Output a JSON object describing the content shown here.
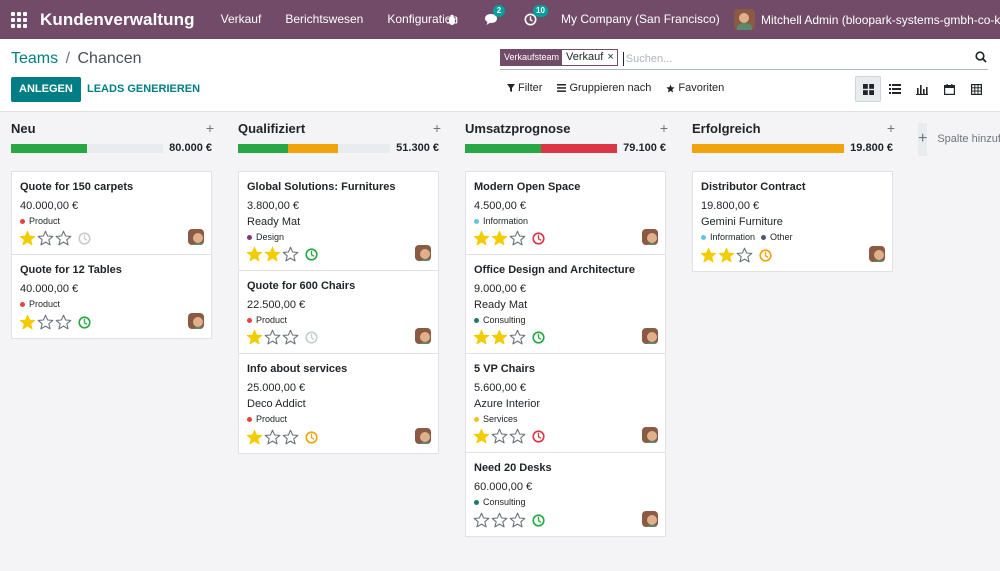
{
  "navbar": {
    "brand": "Kundenverwaltung",
    "menu": [
      "Verkauf",
      "Berichtswesen",
      "Konfiguration"
    ],
    "messages_badge": "2",
    "activities_badge": "10",
    "company": "My Company (San Francisco)",
    "user": "Mitchell Admin (bloopark-systems-gmbh-co-kg)"
  },
  "breadcrumb": {
    "parent": "Teams",
    "separator": "/",
    "current": "Chancen"
  },
  "buttons": {
    "create": "ANLEGEN",
    "generate_leads": "LEADS GENERIEREN"
  },
  "search": {
    "facet_label": "Verkaufsteam",
    "facet_value": "Verkauf",
    "facet_remove": "×",
    "placeholder": "Suchen..."
  },
  "filters": {
    "filter": "Filter",
    "group_by": "Gruppieren nach",
    "favorites": "Favoriten"
  },
  "colors": {
    "brand": "#714b67",
    "accent": "#017e84",
    "won": "#28a745",
    "planned": "#f0a30a",
    "overdue": "#dc3545",
    "tag_product": "#e8423c",
    "tag_design": "#7a3d75",
    "tag_information": "#62c4e6",
    "tag_other": "#4d5570",
    "tag_consulting": "#1a7a6d",
    "tag_services": "#f6c21c"
  },
  "add_column_label": "Spalte hinzufügen",
  "columns": [
    {
      "title": "Neu",
      "total": "80.000 €",
      "progress": [
        {
          "color": "#28a745",
          "fraction": 0.5
        }
      ],
      "cards": [
        {
          "title": "Quote for 150 carpets",
          "amount": "40.000,00 €",
          "partner": "",
          "tags": [
            {
              "name": "Product",
              "color": "#e8423c"
            }
          ],
          "stars": 1,
          "activity": "none"
        },
        {
          "title": "Quote for 12 Tables",
          "amount": "40.000,00 €",
          "partner": "",
          "tags": [
            {
              "name": "Product",
              "color": "#e8423c"
            }
          ],
          "stars": 1,
          "activity": "today"
        }
      ]
    },
    {
      "title": "Qualifiziert",
      "total": "51.300 €",
      "progress": [
        {
          "color": "#28a745",
          "fraction": 0.33
        },
        {
          "color": "#f0a30a",
          "fraction": 0.33
        }
      ],
      "cards": [
        {
          "title": "Global Solutions: Furnitures",
          "amount": "3.800,00 €",
          "partner": "Ready Mat",
          "tags": [
            {
              "name": "Design",
              "color": "#7a3d75"
            }
          ],
          "stars": 2,
          "activity": "today"
        },
        {
          "title": "Quote for 600 Chairs",
          "amount": "22.500,00 €",
          "partner": "",
          "tags": [
            {
              "name": "Product",
              "color": "#e8423c"
            }
          ],
          "stars": 1,
          "activity": "none"
        },
        {
          "title": "Info about services",
          "amount": "25.000,00 €",
          "partner": "Deco Addict",
          "tags": [
            {
              "name": "Product",
              "color": "#e8423c"
            }
          ],
          "stars": 1,
          "activity": "planned"
        }
      ]
    },
    {
      "title": "Umsatzprognose",
      "total": "79.100 €",
      "progress": [
        {
          "color": "#28a745",
          "fraction": 0.5
        },
        {
          "color": "#dc3545",
          "fraction": 0.5
        }
      ],
      "cards": [
        {
          "title": "Modern Open Space",
          "amount": "4.500,00 €",
          "partner": "",
          "tags": [
            {
              "name": "Information",
              "color": "#62c4e6"
            }
          ],
          "stars": 2,
          "activity": "overdue"
        },
        {
          "title": "Office Design and Architecture",
          "amount": "9.000,00 €",
          "partner": "Ready Mat",
          "tags": [
            {
              "name": "Consulting",
              "color": "#1a7a6d"
            }
          ],
          "stars": 2,
          "activity": "today"
        },
        {
          "title": "5 VP Chairs",
          "amount": "5.600,00 €",
          "partner": "Azure Interior",
          "tags": [
            {
              "name": "Services",
              "color": "#f6c21c"
            }
          ],
          "stars": 1,
          "activity": "overdue"
        },
        {
          "title": "Need 20 Desks",
          "amount": "60.000,00 €",
          "partner": "",
          "tags": [
            {
              "name": "Consulting",
              "color": "#1a7a6d"
            }
          ],
          "stars": 0,
          "activity": "today"
        }
      ]
    },
    {
      "title": "Erfolgreich",
      "total": "19.800 €",
      "progress": [
        {
          "color": "#f0a30a",
          "fraction": 1.0
        }
      ],
      "cards": [
        {
          "title": "Distributor Contract",
          "amount": "19.800,00 €",
          "partner": "Gemini Furniture",
          "tags": [
            {
              "name": "Information",
              "color": "#62c4e6"
            },
            {
              "name": "Other",
              "color": "#4d5570"
            }
          ],
          "stars": 2,
          "activity": "planned"
        }
      ]
    }
  ]
}
